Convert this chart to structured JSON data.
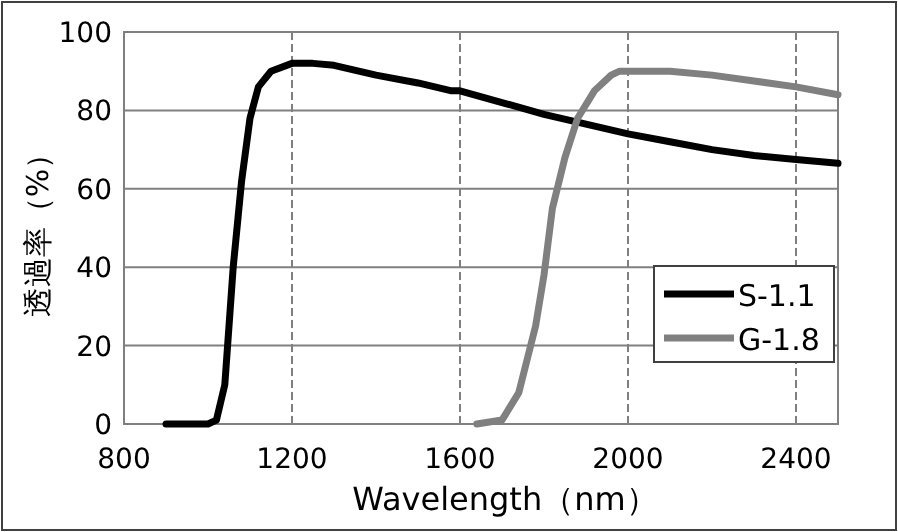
{
  "chart_data": {
    "type": "line",
    "xlabel": "Wavelength（nm）",
    "ylabel": "透過率（%）",
    "xlim": [
      800,
      2500
    ],
    "xticks": [
      800,
      1200,
      1600,
      2000,
      2400
    ],
    "ylim": [
      0,
      100
    ],
    "yticks": [
      0,
      20,
      40,
      60,
      80,
      100
    ],
    "grid": true,
    "legend": "right",
    "line_style": "solid",
    "marker": "none",
    "series": [
      {
        "name": "S-1.1",
        "color": "#000000",
        "x": [
          900,
          1000,
          1020,
          1040,
          1060,
          1080,
          1100,
          1120,
          1150,
          1200,
          1250,
          1300,
          1400,
          1500,
          1580,
          1600,
          1700,
          1800,
          1900,
          2000,
          2100,
          2200,
          2300,
          2400,
          2500
        ],
        "values": [
          0,
          0,
          1,
          10,
          40,
          62,
          78,
          86,
          90,
          92,
          92,
          91.5,
          89,
          87,
          85,
          85,
          82,
          79,
          76.5,
          74,
          72,
          70,
          68.5,
          67.5,
          66.5
        ]
      },
      {
        "name": "G-1.8",
        "color": "#808080",
        "x": [
          1640,
          1700,
          1740,
          1780,
          1800,
          1820,
          1850,
          1880,
          1920,
          1960,
          1980,
          2000,
          2100,
          2200,
          2300,
          2400,
          2500
        ],
        "values": [
          0,
          1,
          8,
          25,
          38,
          55,
          68,
          78,
          85,
          89,
          90,
          90,
          90,
          89,
          87.5,
          86,
          84
        ]
      }
    ]
  }
}
